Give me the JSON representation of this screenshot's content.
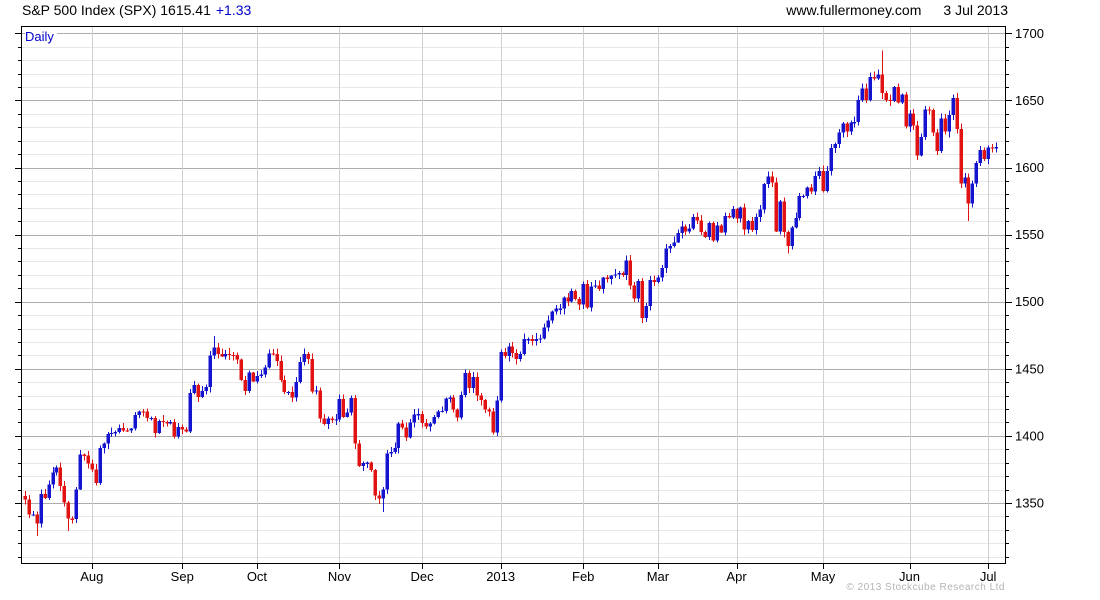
{
  "header": {
    "title": "S&P 500 Index (SPX) 1615.41",
    "change": "+1.33",
    "website": "www.fullermoney.com",
    "date": "3 Jul 2013"
  },
  "footer": {
    "copyright": "© 2013 Stockcube Research Ltd"
  },
  "chart_data": {
    "type": "candlestick",
    "title": "S&P 500 Index (SPX)",
    "timeframe": "Daily",
    "last_close": 1615.41,
    "change": 1.33,
    "date_range": "Jul 2012 - 3 Jul 2013",
    "y_axis": {
      "side": "right",
      "min": 1304.5,
      "max": 1705.5,
      "tick_major": 50,
      "tick_minor": 10,
      "labels": [
        1700,
        1650,
        1600,
        1550,
        1500,
        1450,
        1400,
        1350
      ]
    },
    "x_axis": {
      "labels": [
        "Aug",
        "Sep",
        "Oct",
        "Nov",
        "Dec",
        "2013",
        "Feb",
        "Mar",
        "Apr",
        "May",
        "Jun",
        "Jul"
      ],
      "month_start_indices": [
        17,
        40,
        59,
        80,
        101,
        121,
        142,
        161,
        181,
        203,
        225,
        245
      ]
    },
    "colors": {
      "up": "#1414cf",
      "down": "#e01212",
      "accent_text": "#0000cc",
      "grid_minor": "#e7e7e7",
      "grid_major": "#adadad",
      "grid_month": "#cfcfcf",
      "axis": "#000000",
      "copyright": "#b4b4b4"
    },
    "first_open": 1355.0,
    "closes": [
      1352.5,
      1341.5,
      1341.5,
      1334.8,
      1356.8,
      1353.6,
      1363.7,
      1372.8,
      1376.5,
      1362.7,
      1350.5,
      1338.3,
      1337.9,
      1360.0,
      1386.0,
      1385.3,
      1379.3,
      1375.1,
      1365.0,
      1391.0,
      1394.2,
      1401.4,
      1402.2,
      1402.8,
      1405.9,
      1404.1,
      1403.9,
      1405.5,
      1415.5,
      1418.2,
      1418.1,
      1413.2,
      1413.5,
      1402.1,
      1411.1,
      1410.4,
      1409.3,
      1410.5,
      1399.5,
      1406.6,
      1404.9,
      1403.4,
      1432.1,
      1437.9,
      1429.1,
      1433.6,
      1436.6,
      1460.0,
      1465.8,
      1461.2,
      1459.3,
      1461.1,
      1460.3,
      1460.2,
      1456.9,
      1441.6,
      1433.3,
      1447.2,
      1440.7,
      1444.5,
      1445.8,
      1451.0,
      1461.4,
      1460.9,
      1455.9,
      1441.5,
      1432.6,
      1432.8,
      1428.6,
      1440.1,
      1454.9,
      1460.9,
      1457.3,
      1433.2,
      1433.8,
      1413.1,
      1408.8,
      1413.0,
      1411.9,
      1412.2,
      1427.6,
      1414.2,
      1417.3,
      1428.4,
      1394.5,
      1377.5,
      1379.9,
      1380.0,
      1374.5,
      1355.5,
      1353.3,
      1359.9,
      1386.9,
      1387.8,
      1391.0,
      1409.2,
      1406.3,
      1398.9,
      1409.9,
      1416.0,
      1416.2,
      1409.5,
      1407.1,
      1409.3,
      1413.9,
      1418.1,
      1418.6,
      1427.8,
      1428.5,
      1419.5,
      1413.6,
      1430.4,
      1446.8,
      1435.8,
      1443.7,
      1430.2,
      1426.7,
      1419.8,
      1418.1,
      1402.4,
      1426.2,
      1462.4,
      1459.4,
      1466.5,
      1461.9,
      1457.2,
      1461.0,
      1472.1,
      1472.1,
      1470.7,
      1472.3,
      1472.6,
      1480.9,
      1486.0,
      1492.6,
      1494.8,
      1494.8,
      1503.0,
      1500.2,
      1507.8,
      1502.0,
      1498.1,
      1513.2,
      1495.7,
      1511.3,
      1512.1,
      1509.4,
      1517.9,
      1517.0,
      1519.4,
      1520.3,
      1521.4,
      1519.8,
      1530.9,
      1512.0,
      1502.4,
      1515.6,
      1487.9,
      1496.9,
      1516.0,
      1514.7,
      1518.2,
      1525.2,
      1539.8,
      1541.5,
      1544.3,
      1551.2,
      1556.2,
      1552.5,
      1554.5,
      1563.2,
      1560.7,
      1552.1,
      1548.3,
      1558.7,
      1545.8,
      1556.9,
      1551.7,
      1563.8,
      1562.9,
      1569.2,
      1562.2,
      1570.3,
      1553.7,
      1560.0,
      1553.3,
      1563.1,
      1568.6,
      1587.7,
      1593.4,
      1588.9,
      1552.4,
      1574.6,
      1552.0,
      1541.6,
      1555.3,
      1562.5,
      1578.8,
      1578.8,
      1585.2,
      1582.2,
      1593.6,
      1597.6,
      1582.7,
      1597.6,
      1614.4,
      1617.5,
      1626.0,
      1632.7,
      1626.7,
      1633.7,
      1633.8,
      1650.3,
      1658.8,
      1650.5,
      1667.5,
      1666.3,
      1669.2,
      1655.4,
      1650.5,
      1649.6,
      1660.1,
      1648.4,
      1654.4,
      1630.7,
      1640.4,
      1631.4,
      1608.9,
      1622.6,
      1643.4,
      1642.8,
      1626.1,
      1612.5,
      1636.4,
      1626.7,
      1639.0,
      1651.8,
      1628.9,
      1588.2,
      1592.4,
      1573.1,
      1588.0,
      1603.3,
      1613.2,
      1606.3,
      1615.0,
      1614.1,
      1615.41
    ],
    "wick_overrides": {
      "3": {
        "low": 1325.4
      },
      "11": {
        "low": 1329.2
      },
      "48": {
        "high": 1474.5
      },
      "91": {
        "low": 1343.3
      },
      "194": {
        "low": 1536.0
      },
      "218": {
        "high": 1687.2
      },
      "240": {
        "low": 1560.3
      }
    }
  }
}
